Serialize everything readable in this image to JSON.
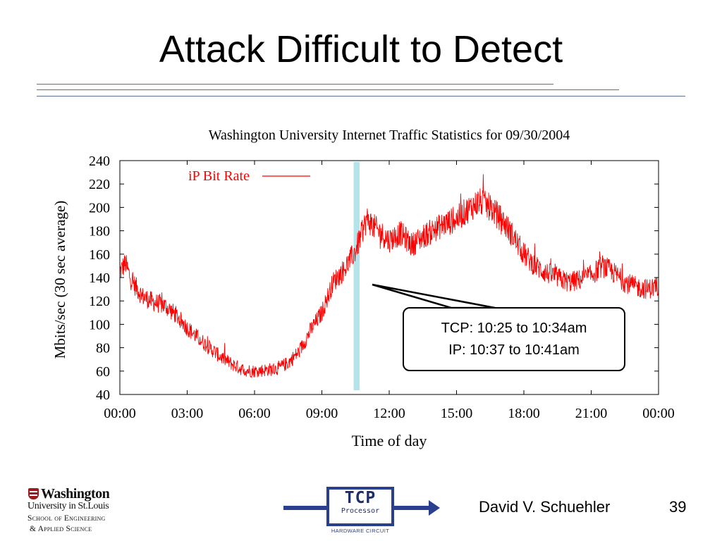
{
  "slide": {
    "title": "Attack Difficult to Detect",
    "author": "David V. Schuehler",
    "page_number": "39"
  },
  "logo": {
    "line1": "Washington",
    "line2": "University in St.Louis",
    "line3": "School of Engineering",
    "line4": "& Applied Science"
  },
  "tcp_logo": {
    "title": "TCP",
    "subtitle": "Processor",
    "caption": "HARDWARE CIRCUIT",
    "color": "#2b3f8f"
  },
  "callout": {
    "line1": "TCP: 10:25 to 10:34am",
    "line2": "IP: 10:37 to 10:41am"
  },
  "chart_data": {
    "type": "line",
    "title": "Washington University Internet Traffic Statistics for 09/30/2004",
    "xlabel": "Time of day",
    "ylabel": "Mbits/sec (30 sec average)",
    "xlim": [
      "00:00",
      "24:00"
    ],
    "ylim": [
      40,
      240
    ],
    "x_tick_labels": [
      "00:00",
      "03:00",
      "06:00",
      "09:00",
      "12:00",
      "15:00",
      "18:00",
      "21:00",
      "00:00"
    ],
    "y_ticks": [
      40,
      60,
      80,
      100,
      120,
      140,
      160,
      180,
      200,
      220,
      240
    ],
    "legend": {
      "position": "top-left",
      "entries": [
        "iP Bit Rate"
      ]
    },
    "grid": false,
    "highlight": {
      "from": "10:25",
      "to": "10:41",
      "color": "#b4e4ea"
    },
    "series": [
      {
        "name": "iP Bit Rate",
        "color": "#ff0000",
        "x": [
          "00:00",
          "00:15",
          "00:30",
          "01:00",
          "01:30",
          "02:00",
          "02:30",
          "03:00",
          "03:30",
          "04:00",
          "04:30",
          "05:00",
          "05:30",
          "06:00",
          "06:30",
          "07:00",
          "07:30",
          "08:00",
          "08:30",
          "09:00",
          "09:30",
          "10:00",
          "10:30",
          "11:00",
          "11:30",
          "12:00",
          "12:30",
          "13:00",
          "13:30",
          "14:00",
          "14:30",
          "15:00",
          "15:30",
          "16:00",
          "16:30",
          "17:00",
          "17:30",
          "18:00",
          "18:30",
          "19:00",
          "19:30",
          "20:00",
          "20:30",
          "21:00",
          "21:30",
          "22:00",
          "22:30",
          "23:00",
          "23:30",
          "24:00"
        ],
        "y": [
          145,
          152,
          138,
          124,
          119,
          116,
          108,
          97,
          88,
          80,
          72,
          66,
          61,
          60,
          61,
          62,
          67,
          77,
          95,
          110,
          136,
          147,
          163,
          190,
          180,
          172,
          178,
          168,
          175,
          181,
          186,
          190,
          198,
          205,
          200,
          190,
          176,
          160,
          150,
          144,
          140,
          136,
          138,
          142,
          150,
          144,
          136,
          132,
          130,
          133
        ]
      }
    ]
  }
}
